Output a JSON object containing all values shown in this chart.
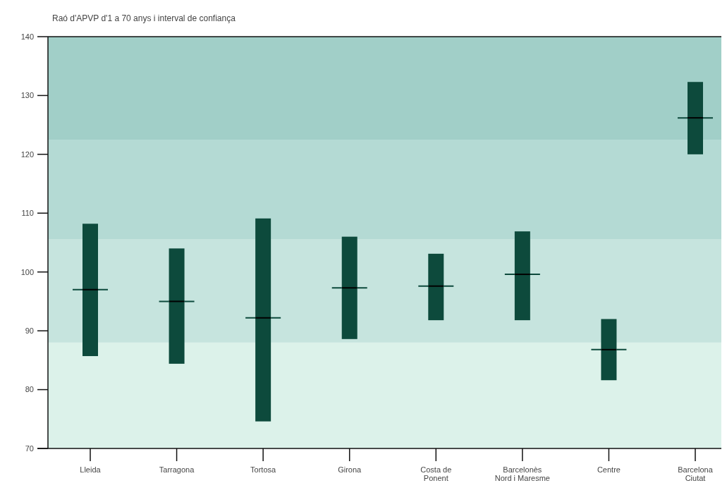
{
  "chart_data": {
    "type": "box",
    "title": "Raó d'APVP d'1 a 70 anys i interval de confiança",
    "categories": [
      "Lleida",
      "Tarragona",
      "Tortosa",
      "Girona",
      "Costa de Ponent",
      "Barcelonès Nord i Maresme",
      "Centre",
      "Barcelona Ciutat"
    ],
    "boxes": [
      {
        "low": 85.7,
        "q1": 85.7,
        "median": 97.0,
        "q3": 108.2,
        "high": 108.2
      },
      {
        "low": 84.4,
        "q1": 84.4,
        "median": 95.0,
        "q3": 104.0,
        "high": 104.0
      },
      {
        "low": 74.6,
        "q1": 74.6,
        "median": 92.2,
        "q3": 109.1,
        "high": 109.1
      },
      {
        "low": 88.6,
        "q1": 88.6,
        "median": 97.3,
        "q3": 106.0,
        "high": 106.0
      },
      {
        "low": 91.8,
        "q1": 91.8,
        "median": 97.6,
        "q3": 103.1,
        "high": 103.1
      },
      {
        "low": 91.8,
        "q1": 91.8,
        "median": 99.6,
        "q3": 106.9,
        "high": 106.9
      },
      {
        "low": 81.6,
        "q1": 81.6,
        "median": 86.8,
        "q3": 92.0,
        "high": 92.0
      },
      {
        "low": 120.0,
        "q1": 120.0,
        "median": 126.2,
        "q3": 132.3,
        "high": 132.3
      }
    ],
    "color": "#0d4a3c",
    "ylim": [
      70,
      140
    ],
    "yticks": [
      70,
      80,
      90,
      100,
      110,
      120,
      130,
      140
    ],
    "bands": [
      {
        "axis": "y",
        "from": 70,
        "to": 88,
        "color": "#dcf2ea"
      },
      {
        "axis": "y",
        "from": 88,
        "to": 105.6,
        "color": "#c6e4de"
      },
      {
        "axis": "y",
        "from": 105.6,
        "to": 122.5,
        "color": "#b4dad4"
      },
      {
        "axis": "y",
        "from": 122.5,
        "to": 140,
        "color": "#a1cfc8"
      }
    ],
    "grid": false,
    "legend": false
  }
}
